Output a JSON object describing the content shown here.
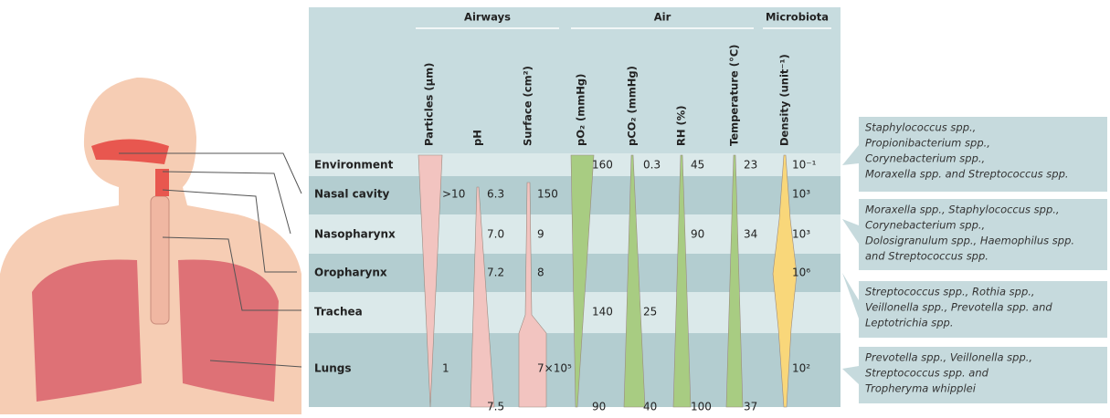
{
  "groups": [
    "Airways",
    "Air",
    "Microbiota"
  ],
  "columns": [
    "Particles (μm)",
    "pH",
    "Surface (cm²)",
    "pO₂ (mmHg)",
    "pCO₂ (mmHg)",
    "RH (%)",
    "Temperature (°C)",
    "Density (unit⁻¹)"
  ],
  "rows": [
    {
      "name": "Environment",
      "cells": [
        null,
        null,
        null,
        "160",
        "0.3",
        "45",
        "23",
        "10⁻¹"
      ]
    },
    {
      "name": "Nasal cavity",
      "cells": [
        ">10",
        "6.3",
        "150",
        null,
        null,
        null,
        null,
        "10³"
      ]
    },
    {
      "name": "Nasopharynx",
      "cells": [
        null,
        "7.0",
        "9",
        null,
        null,
        "90",
        "34",
        "10³"
      ]
    },
    {
      "name": "Oropharynx",
      "cells": [
        null,
        "7.2",
        "8",
        null,
        null,
        null,
        null,
        "10⁶"
      ]
    },
    {
      "name": "Trachea",
      "cells": [
        null,
        null,
        null,
        "140",
        "25",
        null,
        null,
        null
      ]
    },
    {
      "name": "Lungs",
      "cells": [
        "1",
        null,
        "7×10⁵",
        null,
        null,
        null,
        null,
        "10²"
      ]
    }
  ],
  "bottom": [
    null,
    "7.5",
    null,
    "90",
    "40",
    "100",
    "37",
    null
  ],
  "microbiota": [
    [
      "Staphylococcus spp.,",
      "Propionibacterium spp.,",
      "Corynebacterium spp.,",
      "Moraxella spp. and Streptococcus spp."
    ],
    [
      "Moraxella spp., Staphylococcus spp.,",
      "Corynebacterium spp.,",
      "Dolosigranulum spp., Haemophilus spp.",
      "and Streptococcus spp."
    ],
    [
      "Streptococcus spp., Rothia spp.,",
      "Veillonella spp., Prevotella spp. and",
      "Leptotrichia spp."
    ],
    [
      "Prevotella spp., Veillonella spp.,",
      "Streptococcus spp. and",
      "Tropheryma whipplei"
    ]
  ]
}
